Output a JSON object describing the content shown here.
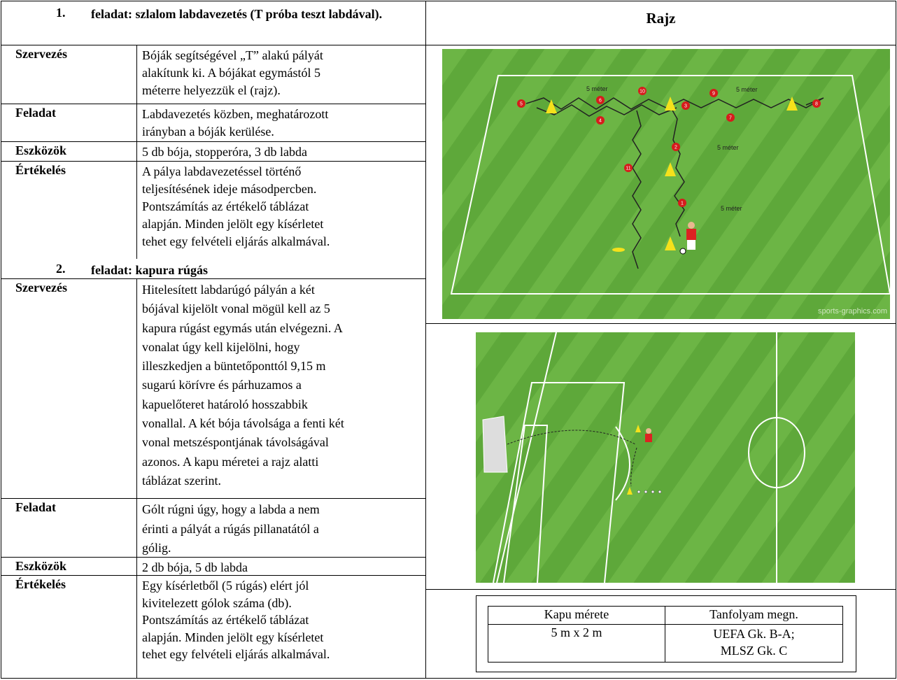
{
  "task1": {
    "number": "1.",
    "title": "feladat: szlalom labdavezetés (T próba teszt labdával).",
    "rows": [
      {
        "label": "Szervezés",
        "lines": [
          "Bóják segítségével „T” alakú pályát",
          "alakítunk ki. A bójákat egymástól 5",
          "méterre helyezzük el (rajz)."
        ]
      },
      {
        "label": "Feladat",
        "lines": [
          "Labdavezetés közben, meghatározott",
          "irányban a bóják kerülése."
        ]
      },
      {
        "label": "Eszközök",
        "lines": [
          "5 db bója, stopperóra, 3 db labda"
        ]
      },
      {
        "label": "Értékelés",
        "lines": [
          "A pálya labdavezetéssel történő",
          "teljesítésének ideje másodpercben.",
          "Pontszámítás az értékelő táblázat",
          "alapján. Minden jelölt egy kísérletet",
          "tehet egy felvételi eljárás alkalmával."
        ]
      }
    ]
  },
  "task2": {
    "number": "2.",
    "title": "feladat: kapura rúgás",
    "rows": [
      {
        "label": "Szervezés",
        "lines": [
          "Hitelesített labdarúgó pályán a két",
          "bójával kijelölt vonal mögül kell az 5",
          "kapura rúgást egymás után elvégezni. A",
          "vonalat úgy kell kijelölni, hogy",
          "illeszkedjen a büntetőponttól 9,15 m",
          "sugarú körívre és párhuzamos a",
          "kapuelőteret határoló hosszabbik",
          "vonallal. A két bója távolsága a fenti két",
          "vonal metszéspontjának távolságával",
          "azonos. A kapu méretei a rajz alatti",
          "táblázat szerint."
        ]
      },
      {
        "label": "Feladat",
        "lines": [
          "Gólt rúgni úgy, hogy a labda a nem",
          "érinti a pályát a rúgás pillanatától a",
          "gólig."
        ]
      },
      {
        "label": "Eszközök",
        "lines": [
          "2 db bója, 5 db labda"
        ]
      },
      {
        "label": "Értékelés",
        "lines": [
          "Egy kísérletből (5 rúgás) elért jól",
          "kivitelezett gólok száma (db).",
          "Pontszámítás az értékelő táblázat",
          "alapján. Minden jelölt egy kísérletet",
          "tehet egy felvételi eljárás alkalmával."
        ]
      }
    ]
  },
  "drawing": {
    "header": "Rajz",
    "slalom": {
      "distance_labels": [
        "5 méter",
        "5 méter",
        "5 méter",
        "5 méter"
      ],
      "markers": [
        "1",
        "2",
        "3",
        "4",
        "5",
        "6",
        "7",
        "8",
        "9",
        "10",
        "11"
      ],
      "watermark": "sports-graphics.com"
    },
    "size_table": {
      "headers": [
        "Kapu mérete",
        "Tanfolyam megn."
      ],
      "row": [
        "5 m x 2 m",
        [
          "UEFA Gk. B-A;",
          "MLSZ Gk. C"
        ]
      ]
    }
  }
}
